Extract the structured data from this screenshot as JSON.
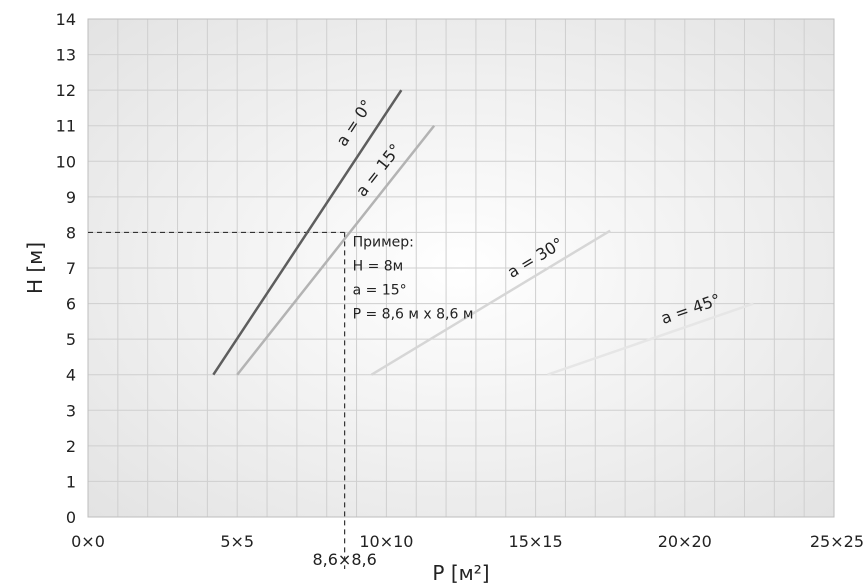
{
  "chart_data": {
    "type": "line",
    "title": "",
    "xlabel": "P [м²]",
    "ylabel": "H [м]",
    "xlim": [
      0,
      25
    ],
    "ylim": [
      0,
      14
    ],
    "grid": true,
    "x_ticks": [
      {
        "value": 0,
        "label": "0×0"
      },
      {
        "value": 5,
        "label": "5×5"
      },
      {
        "value": 10,
        "label": "10×10"
      },
      {
        "value": 15,
        "label": "15×15"
      },
      {
        "value": 20,
        "label": "20×20"
      },
      {
        "value": 25,
        "label": "25×25"
      }
    ],
    "y_ticks": [
      0,
      1,
      2,
      3,
      4,
      5,
      6,
      7,
      8,
      9,
      10,
      11,
      12,
      13,
      14
    ],
    "series": [
      {
        "label": "a = 0°",
        "color": "#5e5e5e",
        "points": [
          [
            4.2,
            4
          ],
          [
            10.5,
            12
          ]
        ]
      },
      {
        "label": "a = 15°",
        "color": "#b3b3b3",
        "points": [
          [
            5.0,
            4
          ],
          [
            11.6,
            11
          ]
        ]
      },
      {
        "label": "a = 30°",
        "color": "#d6d6d6",
        "points": [
          [
            9.5,
            4
          ],
          [
            17.5,
            8.05
          ]
        ]
      },
      {
        "label": "a = 45°",
        "color": "#e6e6e6",
        "points": [
          [
            15.4,
            4
          ],
          [
            22.3,
            6
          ]
        ]
      }
    ],
    "annotation": {
      "marker_x": 8.6,
      "marker_y": 8,
      "marker_x_label": "8,6×8,6",
      "lines": [
        "Пример:",
        "H = 8м",
        "a = 15°",
        "P = 8,6 м x 8,6 м"
      ]
    }
  }
}
